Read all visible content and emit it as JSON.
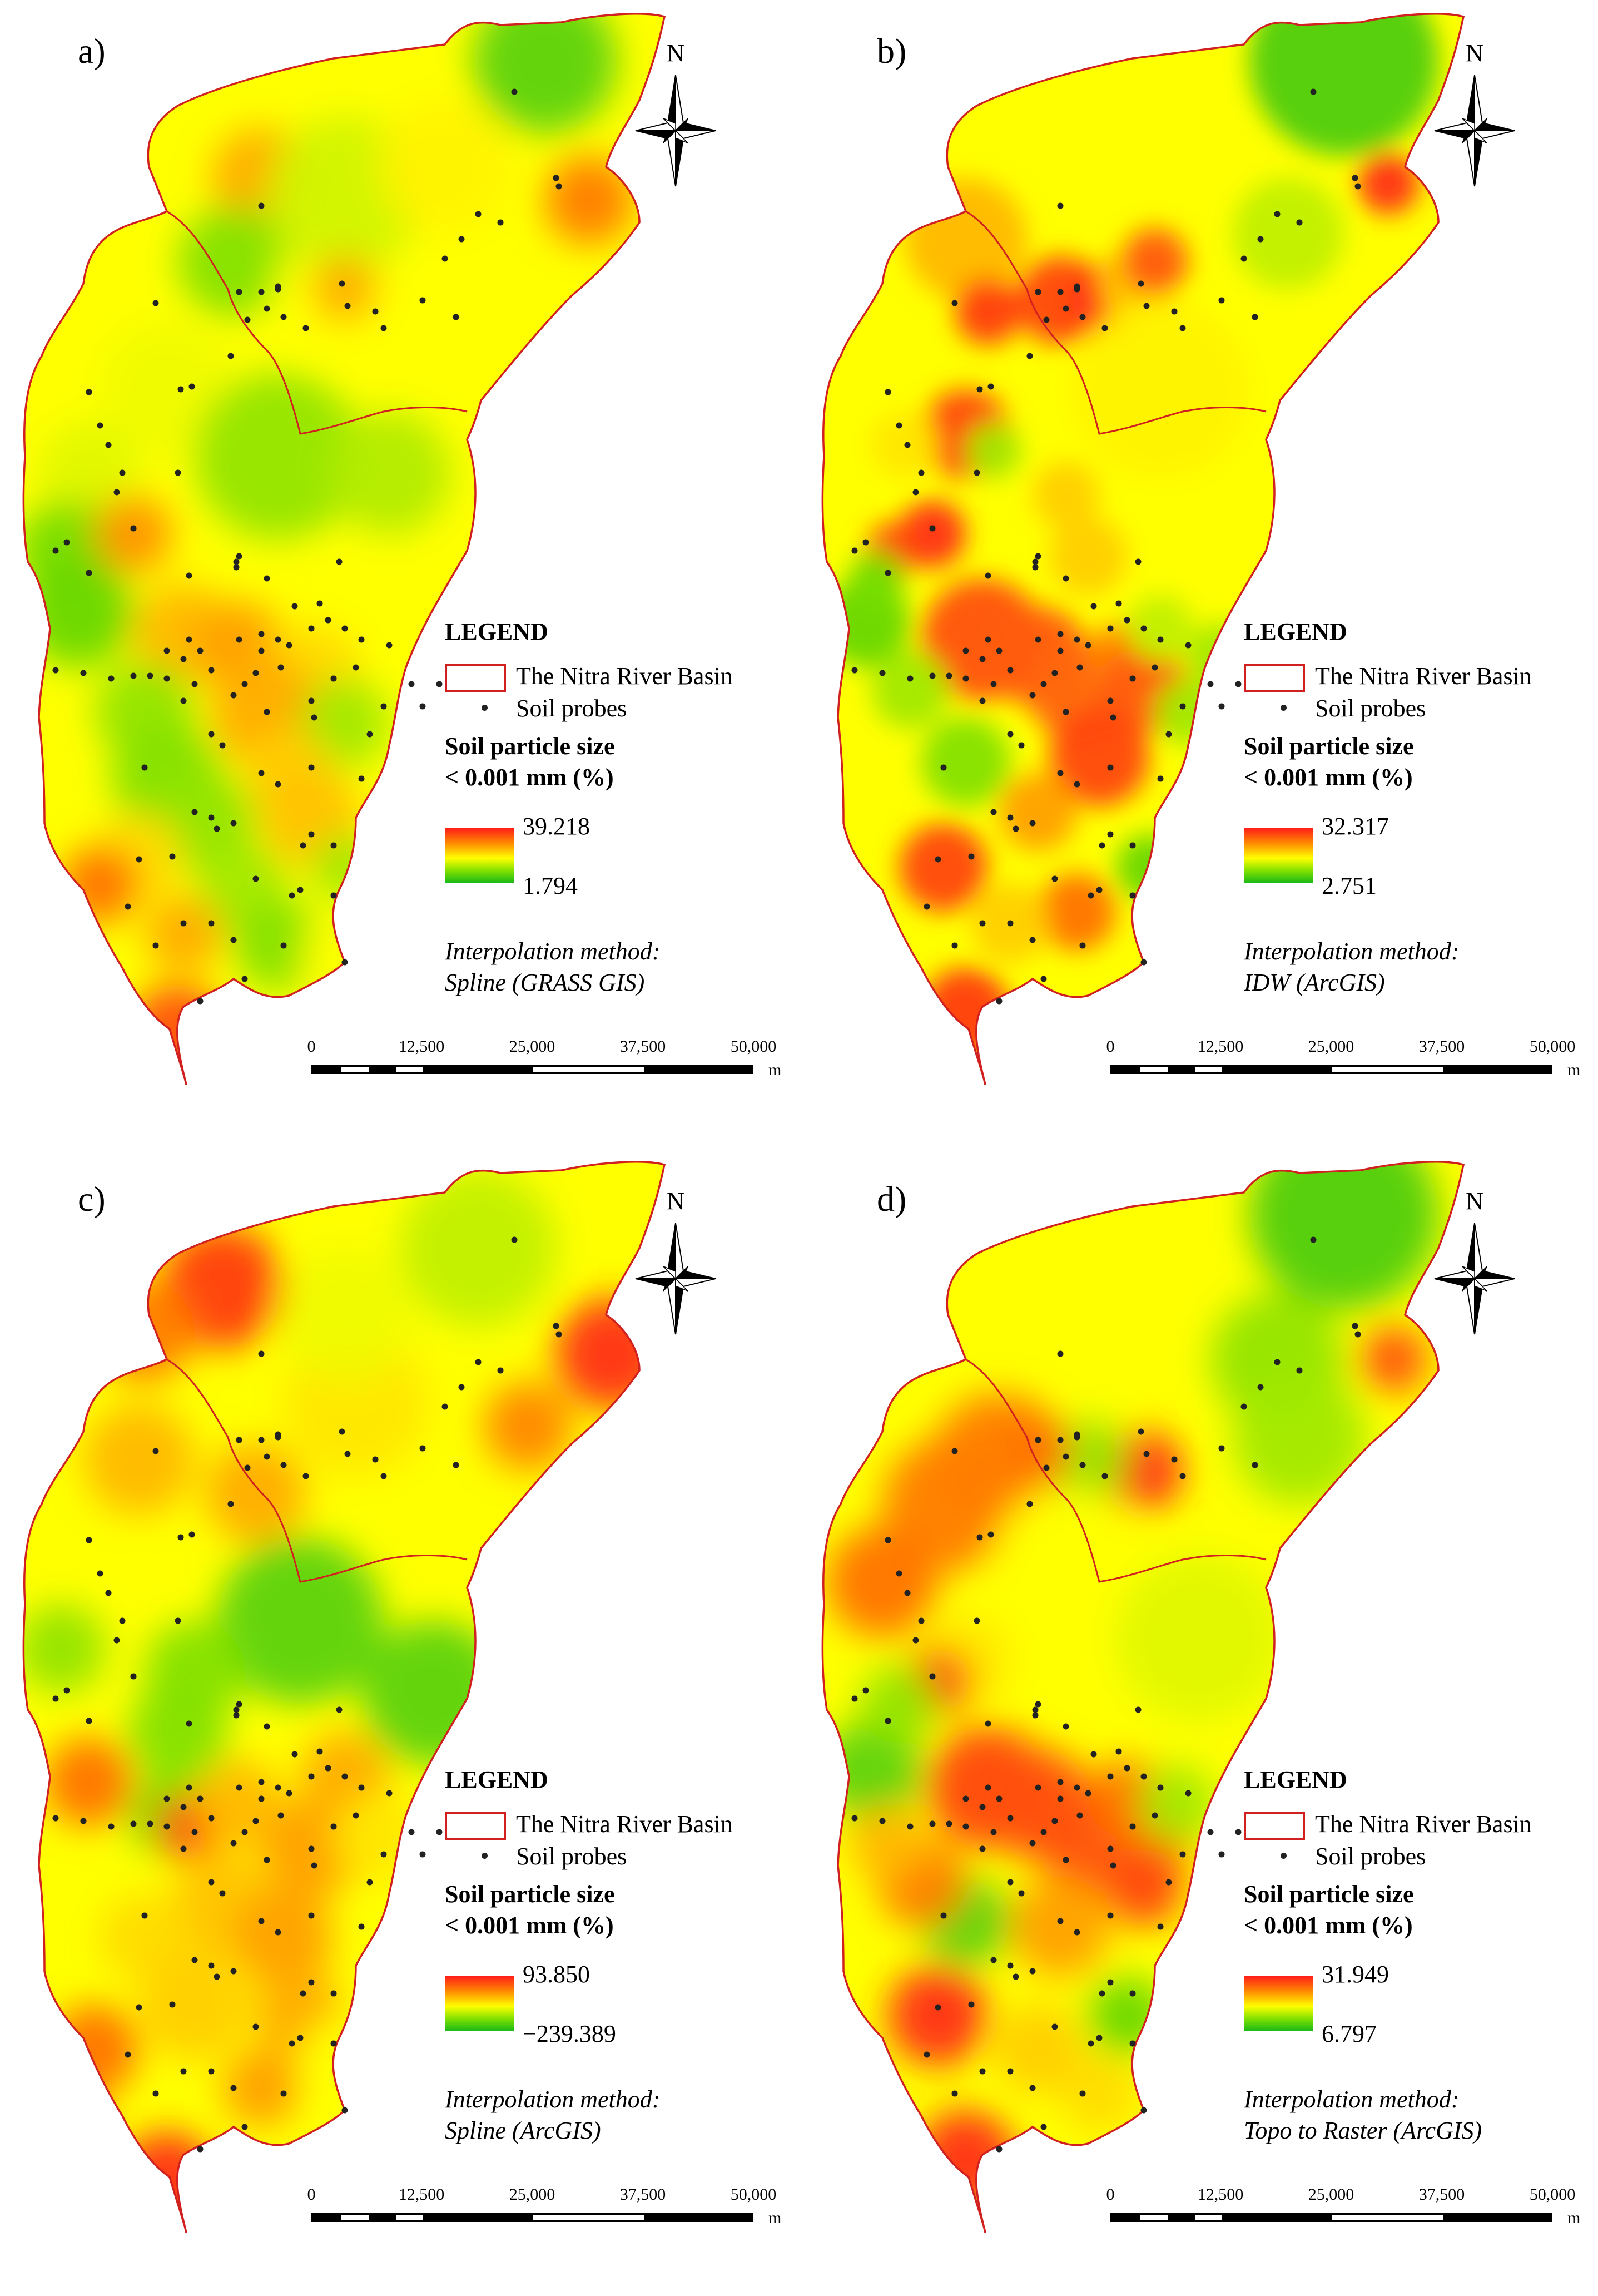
{
  "figure_panels": [
    {
      "id": "a",
      "label": "a)",
      "legend": {
        "title": "LEGEND",
        "basin_label": "The Nitra River Basin",
        "probes_label": "Soil probes",
        "attribute_line1": "Soil particle size",
        "attribute_line2": "< 0.001 mm (%)",
        "value_max": "39.218",
        "value_min": "1.794",
        "method_line1": "Interpolation method:",
        "method_line2": "Spline (GRASS GIS)"
      },
      "north": "N",
      "scale": {
        "ticks": [
          "0",
          "12,500",
          "25,000",
          "37,500",
          "50,000"
        ],
        "unit": "m"
      }
    },
    {
      "id": "b",
      "label": "b)",
      "legend": {
        "title": "LEGEND",
        "basin_label": "The Nitra River Basin",
        "probes_label": "Soil probes",
        "attribute_line1": "Soil particle size",
        "attribute_line2": "< 0.001 mm (%)",
        "value_max": "32.317",
        "value_min": "2.751",
        "method_line1": "Interpolation method:",
        "method_line2": "IDW (ArcGIS)"
      },
      "north": "N",
      "scale": {
        "ticks": [
          "0",
          "12,500",
          "25,000",
          "37,500",
          "50,000"
        ],
        "unit": "m"
      }
    },
    {
      "id": "c",
      "label": "c)",
      "legend": {
        "title": "LEGEND",
        "basin_label": "The Nitra River Basin",
        "probes_label": "Soil probes",
        "attribute_line1": "Soil particle size",
        "attribute_line2": "< 0.001 mm (%)",
        "value_max": "93.850",
        "value_min": "−239.389",
        "method_line1": "Interpolation method:",
        "method_line2": "Spline (ArcGIS)"
      },
      "north": "N",
      "scale": {
        "ticks": [
          "0",
          "12,500",
          "25,000",
          "37,500",
          "50,000"
        ],
        "unit": "m"
      }
    },
    {
      "id": "d",
      "label": "d)",
      "legend": {
        "title": "LEGEND",
        "basin_label": "The Nitra River Basin",
        "probes_label": "Soil probes",
        "attribute_line1": "Soil particle size",
        "attribute_line2": "< 0.001 mm (%)",
        "value_max": "31.949",
        "value_min": "6.797",
        "method_line1": "Interpolation method:",
        "method_line2": "Topo to Raster (ArcGIS)"
      },
      "north": "N",
      "scale": {
        "ticks": [
          "0",
          "12,500",
          "25,000",
          "37,500",
          "50,000"
        ],
        "unit": "m"
      }
    }
  ],
  "colors": {
    "basin_outline": "#d02020",
    "ramp_high": "#ff1a1a",
    "ramp_mid": "#ffff00",
    "ramp_low": "#18b818",
    "probe": "#222222"
  }
}
